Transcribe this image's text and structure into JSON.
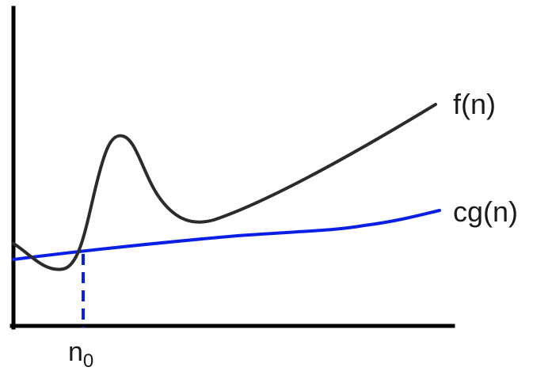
{
  "diagram": {
    "curves": {
      "f": {
        "label": "f(n)",
        "color": "#2b2b2b"
      },
      "cg": {
        "label": "cg(n)",
        "color": "#0a1fe6"
      }
    },
    "threshold": {
      "label_base": "n",
      "label_subscript": "0",
      "color": "#0a1fe6",
      "line_style": "dashed"
    },
    "axes": {
      "color": "#000000"
    }
  }
}
